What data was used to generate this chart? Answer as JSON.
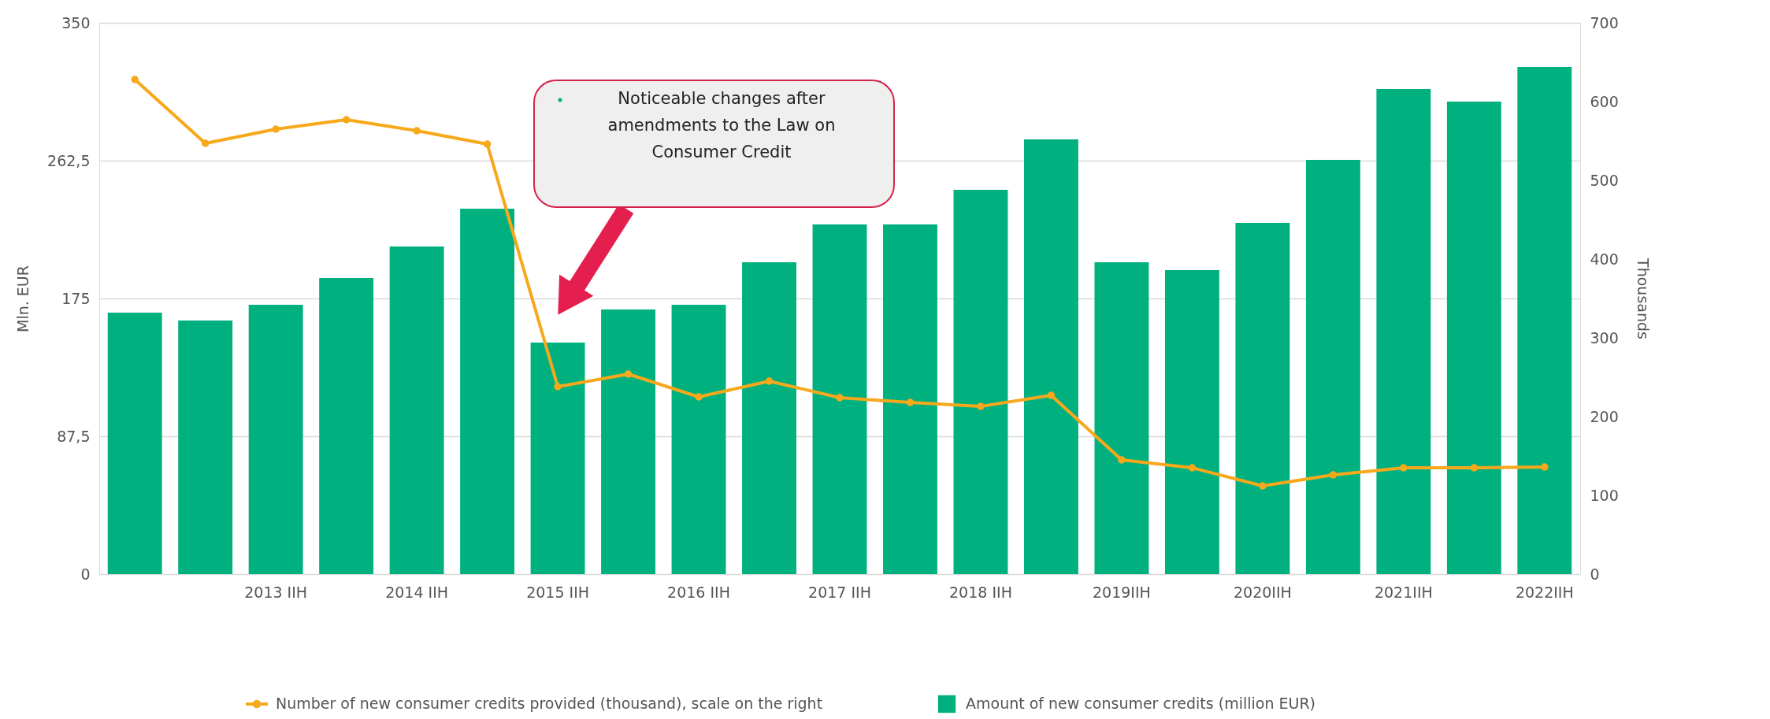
{
  "chart_data": {
    "type": "bar",
    "categories": [
      null,
      null,
      "2013 IIH",
      null,
      "2014 IIH",
      null,
      "2015 IIH",
      null,
      "2016 IIH",
      null,
      "2017 IIH",
      null,
      "2018 IIH",
      null,
      "2019IIH",
      null,
      "2020IIH",
      null,
      "2021IIH",
      null,
      "2022IIH"
    ],
    "series": [
      {
        "name": "Number of new consumer credits provided (thousand), scale on the right",
        "type": "line",
        "axis": "y2",
        "color": "#f7a81b",
        "values": [
          628,
          547,
          565,
          577,
          563,
          546,
          238,
          254,
          225,
          245,
          224,
          218,
          213,
          227,
          145,
          135,
          112,
          126,
          135,
          135,
          136
        ]
      },
      {
        "name": "Amount of new consumer credits (million EUR)",
        "color": "#00b07f",
        "values": [
          166,
          161,
          171,
          188,
          208,
          232,
          147,
          168,
          171,
          198,
          222,
          222,
          244,
          276,
          198,
          193,
          223,
          263,
          308,
          300,
          322
        ]
      }
    ],
    "ylabel": "Mln. EUR",
    "y2label": "Thousands",
    "ylim": [
      0,
      350
    ],
    "yticks": [
      0,
      {
        "value": 87.5,
        "label": "87,5"
      },
      175,
      {
        "value": 262.5,
        "label": "262,5"
      },
      350
    ],
    "y2lim": [
      0,
      700
    ],
    "y2ticks": [
      0,
      100,
      200,
      300,
      400,
      500,
      600,
      700
    ],
    "grid": "y",
    "legend": "bottom",
    "marker": "circle",
    "annotations": [
      "Noticeable changes after amendments to the Law on Consumer Credit"
    ]
  }
}
